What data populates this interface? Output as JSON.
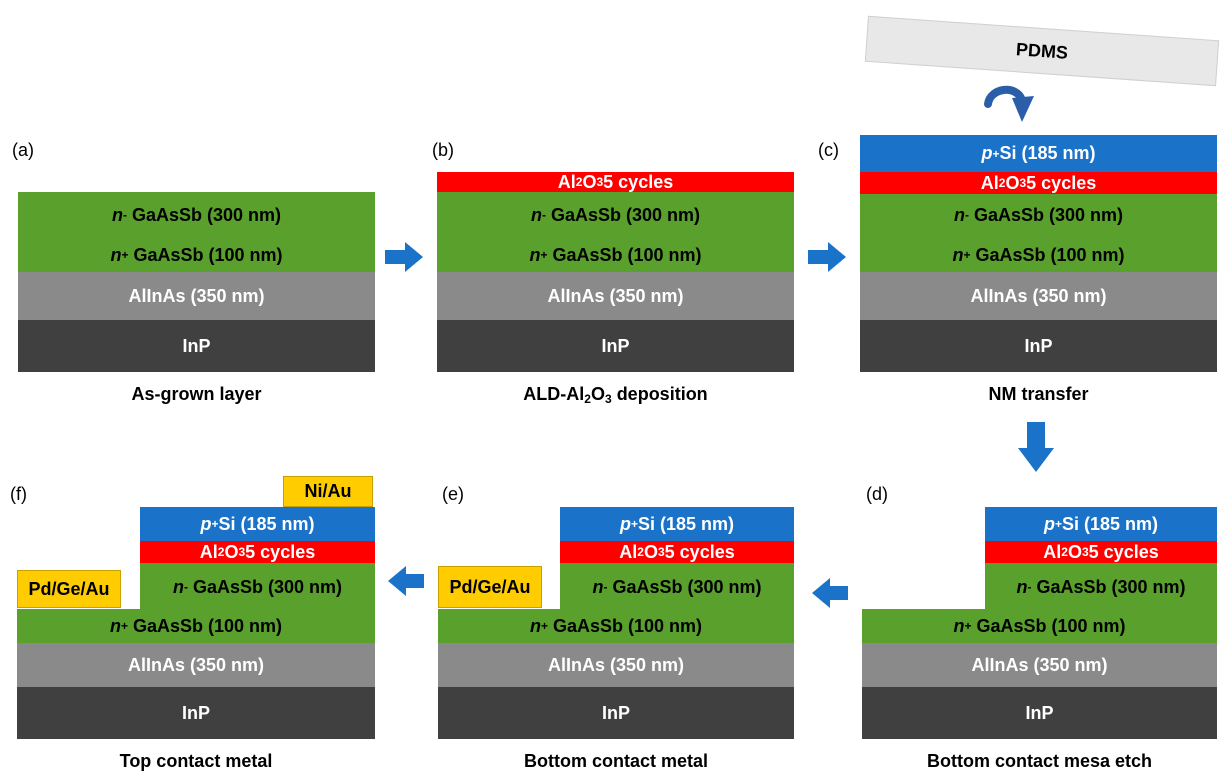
{
  "panel_tags": {
    "a": "(a)",
    "b": "(b)",
    "c": "(c)",
    "d": "(d)",
    "e": "(e)",
    "f": "(f)"
  },
  "layers": {
    "n_minus_gaassb": {
      "prefix": "n",
      "mark": "-",
      "rest": "GaAsSb  (300 nm)"
    },
    "n_plus_gaassb": {
      "prefix": "n",
      "mark": "+",
      "rest": "GaAsSb (100 nm)"
    },
    "alinas": "AlInAs (350 nm)",
    "inp": "InP",
    "al2o3": {
      "a": "Al",
      "sub1": "2",
      "b": "O",
      "sub2": "3",
      "rest": " 5 cycles"
    },
    "p_si": {
      "prefix": "p",
      "mark": "+",
      "rest": " Si  (185 nm)"
    }
  },
  "pdms": "PDMS",
  "contacts": {
    "bottom": "Pd/Ge/Au",
    "top": "Ni/Au"
  },
  "captions": {
    "a": "As-grown layer",
    "b": {
      "pre": "ALD-Al",
      "sub1": "2",
      "mid": "O",
      "sub2": "3",
      "post": " deposition"
    },
    "c": "NM transfer",
    "d": "Bottom contact mesa etch",
    "e": "Bottom contact  metal",
    "f": "Top contact metal"
  },
  "colors": {
    "n_gaassb": "#5aa02c",
    "alinas": "#8a8a8a",
    "inp": "#404040",
    "al2o3": "#ff0000",
    "p_si": "#1a73c9",
    "contact": "#ffcc00",
    "arrow": "#1a73c9",
    "pdms": "#e8e8e8"
  }
}
